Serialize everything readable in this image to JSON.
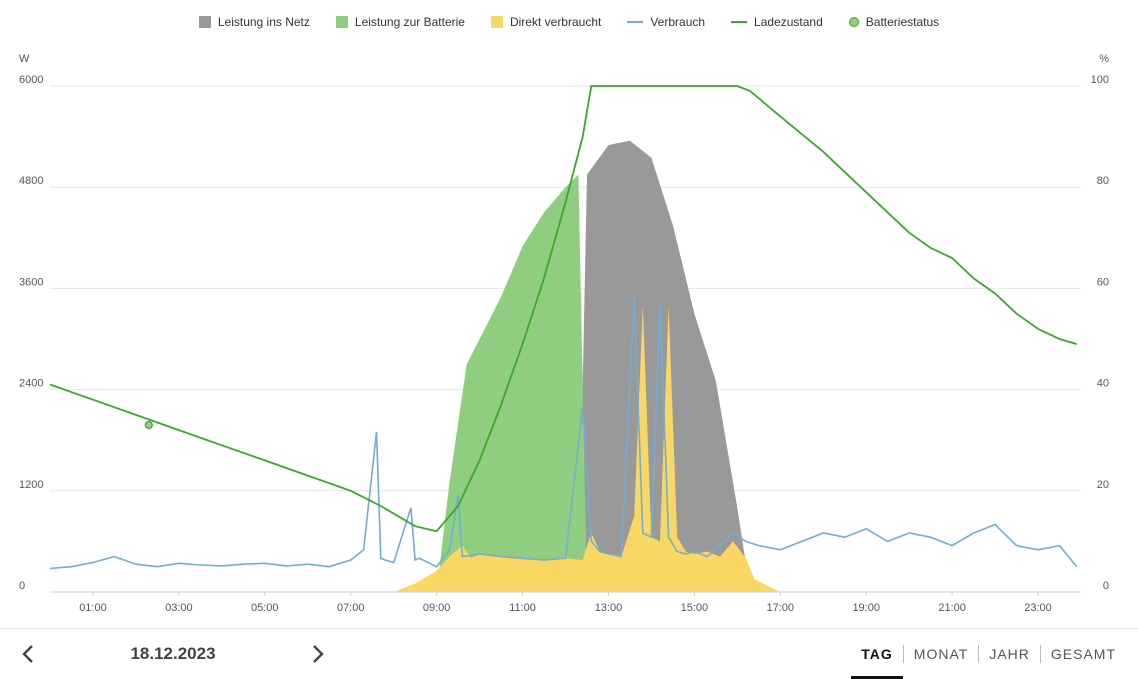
{
  "legend": [
    {
      "label": "Leistung ins Netz",
      "color": "#999999",
      "kind": "box"
    },
    {
      "label": "Leistung zur Batterie",
      "color": "#8fce80",
      "kind": "box"
    },
    {
      "label": "Direkt verbraucht",
      "color": "#f9d764",
      "kind": "box"
    },
    {
      "label": "Verbrauch",
      "color": "#71add4",
      "kind": "line"
    },
    {
      "label": "Ladezustand",
      "color": "#3aa82a",
      "kind": "line"
    },
    {
      "label": "Batteriestatus",
      "color": "#8fce80",
      "kind": "dot"
    }
  ],
  "chart_data": {
    "type": "area",
    "y_left_unit": "W",
    "y_right_unit": "%",
    "ylim": [
      0,
      6000
    ],
    "ylim_right": [
      0,
      100
    ],
    "y_ticks_left": [
      "0",
      "1200",
      "2400",
      "3600",
      "4800",
      "6000"
    ],
    "y_ticks_right": [
      "0",
      "20",
      "40",
      "60",
      "80",
      "100"
    ],
    "x_ticks": [
      "01:00",
      "03:00",
      "05:00",
      "07:00",
      "09:00",
      "11:00",
      "13:00",
      "15:00",
      "17:00",
      "19:00",
      "21:00",
      "23:00"
    ],
    "grid": true,
    "legend_position": "top",
    "series": [
      {
        "name": "Leistung ins Netz",
        "axis": "left",
        "x": [
          12.3,
          12.5,
          13.0,
          13.5,
          14.0,
          14.5,
          15.0,
          15.5,
          16.0,
          16.3
        ],
        "values": [
          0,
          4950,
          5300,
          5350,
          5150,
          4350,
          3300,
          2500,
          1000,
          0
        ]
      },
      {
        "name": "Leistung zur Batterie",
        "axis": "left",
        "x": [
          9.0,
          9.3,
          9.7,
          10.0,
          10.5,
          11.0,
          11.5,
          12.0,
          12.3,
          12.5
        ],
        "values": [
          0,
          1300,
          2700,
          3000,
          3500,
          4100,
          4500,
          4800,
          4950,
          0
        ]
      },
      {
        "name": "Direkt verbraucht",
        "axis": "left",
        "x": [
          8.0,
          8.5,
          9.0,
          9.3,
          9.6,
          9.8,
          10.0,
          10.5,
          11.0,
          11.5,
          12.0,
          12.4,
          12.6,
          12.8,
          13.0,
          13.3,
          13.6,
          13.8,
          14.0,
          14.2,
          14.4,
          14.6,
          14.8,
          15.0,
          15.3,
          15.6,
          15.9,
          16.2,
          16.4,
          17.0
        ],
        "values": [
          0,
          100,
          250,
          420,
          550,
          400,
          450,
          420,
          400,
          380,
          400,
          380,
          700,
          480,
          450,
          420,
          900,
          3400,
          650,
          600,
          3400,
          650,
          480,
          450,
          480,
          420,
          600,
          400,
          150,
          0
        ]
      },
      {
        "name": "Verbrauch",
        "axis": "left",
        "x": [
          0.0,
          0.5,
          1.0,
          1.5,
          2.0,
          2.5,
          3.0,
          3.5,
          4.0,
          4.5,
          5.0,
          5.5,
          6.0,
          6.5,
          7.0,
          7.3,
          7.6,
          7.7,
          7.8,
          8.0,
          8.4,
          8.5,
          8.6,
          9.0,
          9.3,
          9.5,
          9.6,
          10.0,
          10.5,
          11.0,
          11.5,
          12.0,
          12.4,
          12.6,
          12.8,
          13.0,
          13.3,
          13.6,
          13.8,
          14.0,
          14.2,
          14.4,
          14.6,
          14.8,
          15.0,
          15.3,
          15.6,
          15.9,
          16.2,
          16.5,
          17.0,
          17.5,
          18.0,
          18.5,
          19.0,
          19.5,
          20.0,
          20.5,
          21.0,
          21.5,
          22.0,
          22.5,
          23.0,
          23.5,
          23.9
        ],
        "values": [
          280,
          300,
          350,
          420,
          330,
          300,
          340,
          320,
          310,
          330,
          340,
          310,
          330,
          300,
          380,
          500,
          1900,
          400,
          380,
          350,
          1000,
          380,
          400,
          300,
          500,
          1150,
          420,
          450,
          420,
          400,
          380,
          400,
          2200,
          600,
          480,
          450,
          420,
          3500,
          700,
          650,
          3400,
          650,
          480,
          450,
          480,
          420,
          550,
          700,
          600,
          550,
          500,
          600,
          700,
          650,
          750,
          600,
          700,
          650,
          550,
          700,
          800,
          550,
          500,
          550,
          300
        ]
      },
      {
        "name": "Ladezustand",
        "axis": "right",
        "x": [
          0.0,
          1.0,
          2.0,
          3.0,
          4.0,
          5.0,
          6.0,
          7.0,
          7.7,
          8.5,
          9.0,
          9.5,
          10.0,
          10.5,
          11.0,
          11.5,
          12.0,
          12.4,
          12.6,
          14.0,
          16.0,
          16.3,
          17.0,
          18.0,
          19.0,
          20.0,
          20.5,
          21.0,
          21.5,
          22.0,
          22.5,
          23.0,
          23.5,
          23.9
        ],
        "values": [
          41,
          38,
          35,
          32,
          29,
          26,
          23,
          20,
          17,
          13,
          12,
          17,
          26,
          37,
          49,
          62,
          77,
          90,
          100,
          100,
          100,
          99,
          94,
          87,
          79,
          71,
          68,
          66,
          62,
          59,
          55,
          52,
          50,
          49
        ]
      }
    ],
    "markers": [
      {
        "series": "Batteriestatus",
        "x": 2.3,
        "value": 33
      }
    ]
  },
  "bottom": {
    "date": "18.12.2023",
    "prev_icon": "chevron-left-icon",
    "next_icon": "chevron-right-icon",
    "tabs": [
      "TAG",
      "MONAT",
      "JAHR",
      "GESAMT"
    ],
    "active_tab": "TAG"
  }
}
